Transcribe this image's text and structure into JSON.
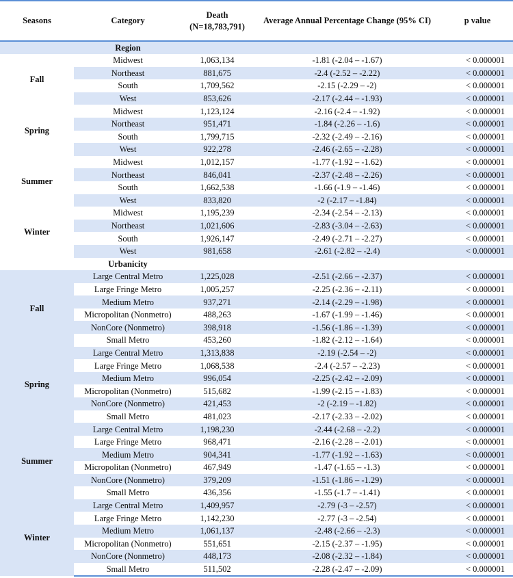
{
  "headers": {
    "seasons": "Seasons",
    "category": "Category",
    "death_line1": "Death",
    "death_line2": "(N=18,783,791)",
    "apc": "Average Annual Percentage Change (95% CI)",
    "pvalue": "p value"
  },
  "sections": [
    {
      "title": "Region",
      "groups": [
        {
          "season": "Fall",
          "rows": [
            {
              "category": "Midwest",
              "death": "1,063,134",
              "apc": "-1.81 (-2.04 – -1.67)",
              "p": "< 0.000001"
            },
            {
              "category": "Northeast",
              "death": "881,675",
              "apc": "-2.4 (-2.52 – -2.22)",
              "p": "< 0.000001"
            },
            {
              "category": "South",
              "death": "1,709,562",
              "apc": "-2.15 (-2.29 – -2)",
              "p": "< 0.000001"
            },
            {
              "category": "West",
              "death": "853,626",
              "apc": "-2.17 (-2.44 – -1.93)",
              "p": "< 0.000001"
            }
          ]
        },
        {
          "season": "Spring",
          "rows": [
            {
              "category": "Midwest",
              "death": "1,123,124",
              "apc": "-2.16 (-2.4 – -1.92)",
              "p": "< 0.000001"
            },
            {
              "category": "Northeast",
              "death": "951,471",
              "apc": "-1.84 (-2.26 – -1.6)",
              "p": "< 0.000001"
            },
            {
              "category": "South",
              "death": "1,799,715",
              "apc": "-2.32 (-2.49 – -2.16)",
              "p": "< 0.000001"
            },
            {
              "category": "West",
              "death": "922,278",
              "apc": "-2.46 (-2.65 – -2.28)",
              "p": "< 0.000001"
            }
          ]
        },
        {
          "season": "Summer",
          "rows": [
            {
              "category": "Midwest",
              "death": "1,012,157",
              "apc": "-1.77 (-1.92 – -1.62)",
              "p": "< 0.000001"
            },
            {
              "category": "Northeast",
              "death": "846,041",
              "apc": "-2.37 (-2.48 – -2.26)",
              "p": "< 0.000001"
            },
            {
              "category": "South",
              "death": "1,662,538",
              "apc": "-1.66 (-1.9 – -1.46)",
              "p": "< 0.000001"
            },
            {
              "category": "West",
              "death": "833,820",
              "apc": "-2 (-2.17 – -1.84)",
              "p": "< 0.000001"
            }
          ]
        },
        {
          "season": "Winter",
          "rows": [
            {
              "category": "Midwest",
              "death": "1,195,239",
              "apc": "-2.34 (-2.54 – -2.13)",
              "p": "< 0.000001"
            },
            {
              "category": "Northeast",
              "death": "1,021,606",
              "apc": "-2.83 (-3.04 – -2.63)",
              "p": "< 0.000001"
            },
            {
              "category": "South",
              "death": "1,926,147",
              "apc": "-2.49 (-2.71 – -2.27)",
              "p": "< 0.000001"
            },
            {
              "category": "West",
              "death": "981,658",
              "apc": "-2.61 (-2.82 – -2.4)",
              "p": "< 0.000001"
            }
          ]
        }
      ]
    },
    {
      "title": "Urbanicity",
      "groups": [
        {
          "season": "Fall",
          "rows": [
            {
              "category": "Large Central Metro",
              "death": "1,225,028",
              "apc": "-2.51 (-2.66 – -2.37)",
              "p": "< 0.000001"
            },
            {
              "category": "Large Fringe Metro",
              "death": "1,005,257",
              "apc": "-2.25 (-2.36 – -2.11)",
              "p": "< 0.000001"
            },
            {
              "category": "Medium Metro",
              "death": "937,271",
              "apc": "-2.14 (-2.29 – -1.98)",
              "p": "< 0.000001"
            },
            {
              "category": "Micropolitan (Nonmetro)",
              "death": "488,263",
              "apc": "-1.67 (-1.99 – -1.46)",
              "p": "< 0.000001"
            },
            {
              "category": "NonCore (Nonmetro)",
              "death": "398,918",
              "apc": "-1.56 (-1.86 – -1.39)",
              "p": "< 0.000001"
            },
            {
              "category": "Small Metro",
              "death": "453,260",
              "apc": "-1.82 (-2.12 – -1.64)",
              "p": "< 0.000001"
            }
          ]
        },
        {
          "season": "Spring",
          "rows": [
            {
              "category": "Large Central Metro",
              "death": "1,313,838",
              "apc": "-2.19 (-2.54 – -2)",
              "p": "< 0.000001"
            },
            {
              "category": "Large Fringe Metro",
              "death": "1,068,538",
              "apc": "-2.4 (-2.57 – -2.23)",
              "p": "< 0.000001"
            },
            {
              "category": "Medium Metro",
              "death": "996,054",
              "apc": "-2.25 (-2.42 – -2.09)",
              "p": "< 0.000001"
            },
            {
              "category": "Micropolitan (Nonmetro)",
              "death": "515,682",
              "apc": "-1.99 (-2.15 – -1.83)",
              "p": "< 0.000001"
            },
            {
              "category": "NonCore (Nonmetro)",
              "death": "421,453",
              "apc": "-2 (-2.19 – -1.82)",
              "p": "< 0.000001"
            },
            {
              "category": "Small Metro",
              "death": "481,023",
              "apc": "-2.17 (-2.33 – -2.02)",
              "p": "< 0.000001"
            }
          ]
        },
        {
          "season": "Summer",
          "rows": [
            {
              "category": "Large Central Metro",
              "death": "1,198,230",
              "apc": "-2.44 (-2.68 – -2.2)",
              "p": "< 0.000001"
            },
            {
              "category": "Large Fringe Metro",
              "death": "968,471",
              "apc": "-2.16 (-2.28 – -2.01)",
              "p": "< 0.000001"
            },
            {
              "category": "Medium Metro",
              "death": "904,341",
              "apc": "-1.77 (-1.92 – -1.63)",
              "p": "< 0.000001"
            },
            {
              "category": "Micropolitan (Nonmetro)",
              "death": "467,949",
              "apc": "-1.47 (-1.65 – -1.3)",
              "p": "< 0.000001"
            },
            {
              "category": "NonCore (Nonmetro)",
              "death": "379,209",
              "apc": "-1.51 (-1.86 – -1.29)",
              "p": "< 0.000001"
            },
            {
              "category": "Small Metro",
              "death": "436,356",
              "apc": "-1.55 (-1.7 – -1.41)",
              "p": "< 0.000001"
            }
          ]
        },
        {
          "season": "Winter",
          "rows": [
            {
              "category": "Large Central Metro",
              "death": "1,409,957",
              "apc": "-2.79 (-3 – -2.57)",
              "p": "< 0.000001"
            },
            {
              "category": "Large Fringe Metro",
              "death": "1,142,230",
              "apc": "-2.77 (-3 – -2.54)",
              "p": "< 0.000001"
            },
            {
              "category": "Medium Metro",
              "death": "1,061,137",
              "apc": "-2.48 (-2.66 – -2.3)",
              "p": "< 0.000001"
            },
            {
              "category": "Micropolitan (Nonmetro)",
              "death": "551,651",
              "apc": "-2.15 (-2.37 – -1.95)",
              "p": "< 0.000001"
            },
            {
              "category": "NonCore (Nonmetro)",
              "death": "448,173",
              "apc": "-2.08 (-2.32 – -1.84)",
              "p": "< 0.000001"
            },
            {
              "category": "Small Metro",
              "death": "511,502",
              "apc": "-2.28 (-2.47 – -2.09)",
              "p": "< 0.000001"
            }
          ]
        }
      ]
    }
  ]
}
